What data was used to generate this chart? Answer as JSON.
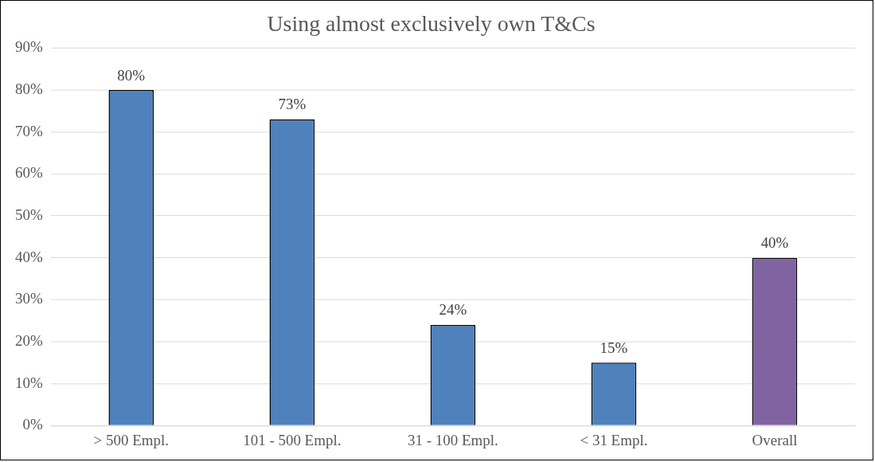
{
  "chart_data": {
    "type": "bar",
    "title": "Using almost exclusively own T&Cs",
    "categories": [
      "> 500 Empl.",
      "101 - 500 Empl.",
      "31 - 100 Empl.",
      "< 31 Empl.",
      "Overall"
    ],
    "values": [
      80,
      73,
      24,
      15,
      40
    ],
    "colors": [
      "#4f81bd",
      "#4f81bd",
      "#4f81bd",
      "#4f81bd",
      "#8064a2"
    ],
    "value_labels": [
      "80%",
      "73%",
      "24%",
      "15%",
      "40%"
    ],
    "ylim": [
      0,
      90
    ],
    "yticks": [
      {
        "value": 0,
        "label": "0%"
      },
      {
        "value": 10,
        "label": "10%"
      },
      {
        "value": 20,
        "label": "20%"
      },
      {
        "value": 30,
        "label": "30%"
      },
      {
        "value": 40,
        "label": "40%"
      },
      {
        "value": 50,
        "label": "50%"
      },
      {
        "value": 60,
        "label": "60%"
      },
      {
        "value": 70,
        "label": "70%"
      },
      {
        "value": 80,
        "label": "80%"
      },
      {
        "value": 90,
        "label": "90%"
      }
    ],
    "grid": "y",
    "legend": false
  }
}
